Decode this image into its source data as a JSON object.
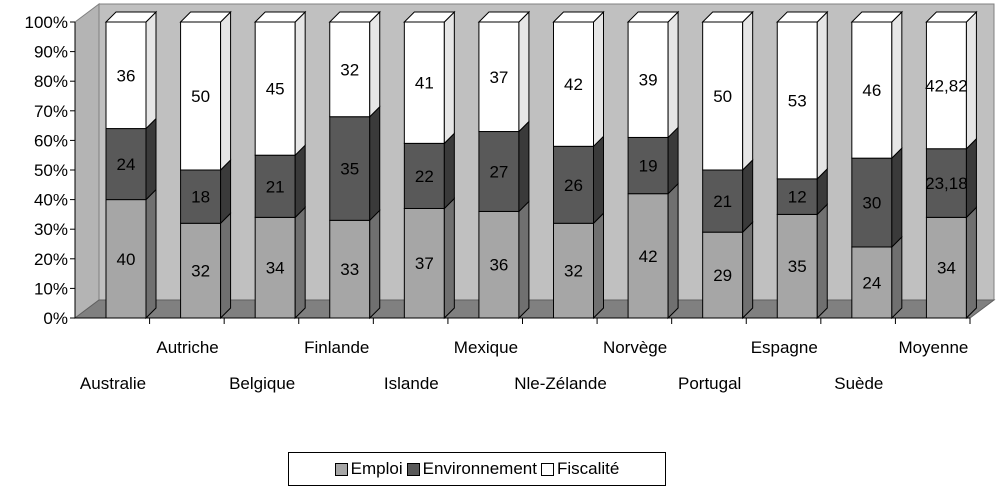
{
  "chart_data": {
    "type": "bar",
    "stacked": true,
    "percent": true,
    "three_d": true,
    "categories": [
      "Australie",
      "Autriche",
      "Belgique",
      "Finlande",
      "Islande",
      "Mexique",
      "Nle-Zélande",
      "Norvège",
      "Portugal",
      "Espagne",
      "Suède",
      "Moyenne"
    ],
    "series": [
      {
        "name": "Emploi",
        "color": "#a6a6a6",
        "values": [
          40,
          32,
          34,
          33,
          37,
          36,
          32,
          42,
          29,
          35,
          24,
          34
        ]
      },
      {
        "name": "Environnement",
        "color": "#595959",
        "values": [
          24,
          18,
          21,
          35,
          22,
          27,
          26,
          19,
          21,
          12,
          30,
          23.18
        ]
      },
      {
        "name": "Fiscalité",
        "color": "#ffffff",
        "values": [
          36,
          50,
          45,
          32,
          41,
          37,
          42,
          39,
          50,
          53,
          46,
          42.82
        ]
      }
    ],
    "data_labels": [
      [
        "40",
        "32",
        "34",
        "33",
        "37",
        "36",
        "32",
        "42",
        "29",
        "35",
        "24",
        "34"
      ],
      [
        "24",
        "18",
        "21",
        "35",
        "22",
        "27",
        "26",
        "19",
        "21",
        "12",
        "30",
        "23,18"
      ],
      [
        "36",
        "50",
        "45",
        "32",
        "41",
        "37",
        "42",
        "39",
        "50",
        "53",
        "46",
        "42,82"
      ]
    ],
    "yticks": [
      "0%",
      "10%",
      "20%",
      "30%",
      "40%",
      "50%",
      "60%",
      "70%",
      "80%",
      "90%",
      "100%"
    ],
    "ylim": [
      0,
      100
    ],
    "grid": false,
    "legend_position": "bottom"
  }
}
